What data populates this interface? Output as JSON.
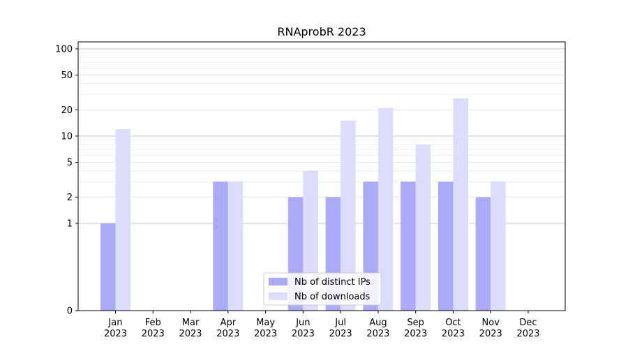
{
  "chart_data": {
    "type": "bar",
    "title": "RNAprobR 2023",
    "xlabel": "",
    "ylabel": "",
    "yscale": "symlog",
    "ylim": [
      0,
      120
    ],
    "yticks": [
      0,
      1,
      2,
      5,
      10,
      20,
      50,
      100
    ],
    "ytick_labels": [
      "0",
      "1",
      "2",
      "5",
      "10",
      "20",
      "50",
      "100"
    ],
    "categories": [
      "Jan\n2023",
      "Feb\n2023",
      "Mar\n2023",
      "Apr\n2023",
      "May\n2023",
      "Jun\n2023",
      "Jul\n2023",
      "Aug\n2023",
      "Sep\n2023",
      "Oct\n2023",
      "Nov\n2023",
      "Dec\n2023"
    ],
    "series": [
      {
        "name": "Nb of distinct IPs",
        "color": "#aaaaf8",
        "values": [
          1,
          0,
          0,
          3,
          0,
          2,
          2,
          3,
          3,
          3,
          2,
          0
        ]
      },
      {
        "name": "Nb of downloads",
        "color": "#dcdcfc",
        "values": [
          12,
          0,
          0,
          3,
          0,
          4,
          15,
          21,
          8,
          27,
          3,
          0
        ]
      }
    ],
    "grid": true,
    "legend_position": "lower-center"
  }
}
